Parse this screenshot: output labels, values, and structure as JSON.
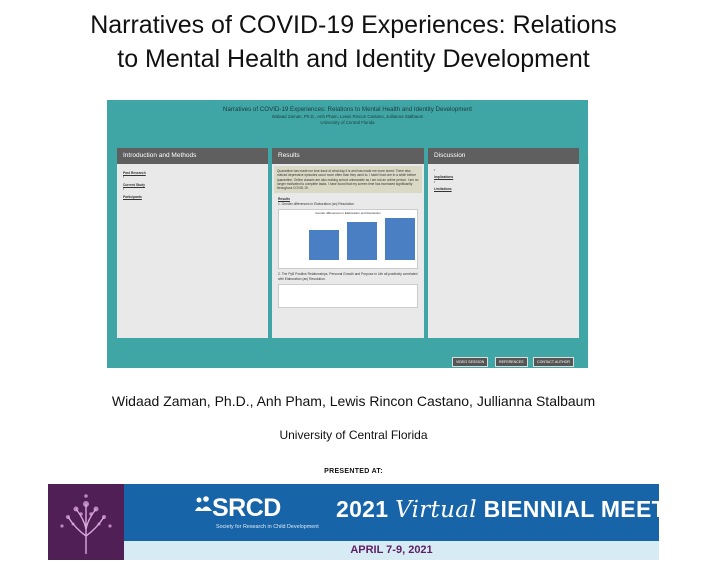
{
  "title_line1": "Narratives of COVID-19 Experiences: Relations",
  "title_line2": "to Mental Health and Identity Development",
  "poster": {
    "title": "Narratives of COVID-19 Experiences: Relations to Mental Health and Identity Development",
    "authors": "Widaad Zaman, Ph.D., Anh Pham, Lewis Rincon Castano, Jullianna Stalbaum",
    "university": "University of Central Florida",
    "col1_heading": "Introduction and Methods",
    "col2_heading": "Results",
    "col3_heading": "Discussion",
    "col1_sub1": "Past Research",
    "col1_sub2": "Current Study",
    "col1_sub3": "Participants",
    "col2_sub1": "Results",
    "col2_sub2": "1. Gender differences in Elaboration (an) Resolution",
    "col2_sub3": "2. The PyB Positive Relationships, Personal Growth and Purpose in Life all positively correlated with Elaboration (an) Resolution.",
    "col3_sub1": "Implications",
    "col3_sub2": "Limitations",
    "col2_quote": "Quarantine has made me lose track of what day it is and has made me more bored. There also noticed depressive episodes occur more often than they used to. I hadn't had one in a while before quarantine. Online classes are also making school unbearable as I am not an online person. I am no longer motivated to complete tasks. I have found that my screen time has increased significantly throughout COVID-19.",
    "chart_title": "Gender differences in Elaboration and Resolution",
    "btn_video": "VIDEO SESSION",
    "btn_refs": "REFERENCES",
    "btn_contact": "CONTACT AUTHOR"
  },
  "authors": "Widaad Zaman, Ph.D., Anh Pham, Lewis Rincon Castano, Jullianna Stalbaum",
  "affiliation": "University of Central Florida",
  "presented_at": "PRESENTED AT:",
  "banner": {
    "logo": "SRCD",
    "logo_sub": "Society for Research in Child Development",
    "meeting_year": "2021",
    "meeting_virtual": "Virtual",
    "meeting_rest": "BIENNIAL MEETING",
    "dates": "APRIL 7-9, 2021"
  }
}
